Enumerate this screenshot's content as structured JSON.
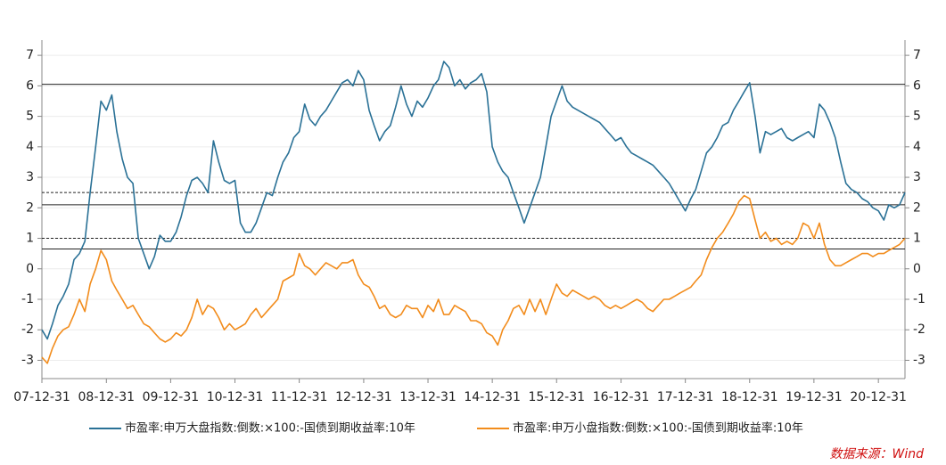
{
  "chart_data": {
    "type": "line",
    "x": [
      "07-12-31",
      "08-01-31",
      "08-02-29",
      "08-03-31",
      "08-04-30",
      "08-05-31",
      "08-06-30",
      "08-07-31",
      "08-08-31",
      "08-09-30",
      "08-10-31",
      "08-11-30",
      "08-12-31",
      "09-01-31",
      "09-02-28",
      "09-03-31",
      "09-04-30",
      "09-05-31",
      "09-06-30",
      "09-07-31",
      "09-08-31",
      "09-09-30",
      "09-10-31",
      "09-11-30",
      "09-12-31",
      "10-01-31",
      "10-02-28",
      "10-03-31",
      "10-04-30",
      "10-05-31",
      "10-06-30",
      "10-07-31",
      "10-08-31",
      "10-09-30",
      "10-10-31",
      "10-11-30",
      "10-12-31",
      "11-01-31",
      "11-02-28",
      "11-03-31",
      "11-04-30",
      "11-05-31",
      "11-06-30",
      "11-07-31",
      "11-08-31",
      "11-09-30",
      "11-10-31",
      "11-11-30",
      "11-12-31",
      "12-01-31",
      "12-02-29",
      "12-03-31",
      "12-04-30",
      "12-05-31",
      "12-06-30",
      "12-07-31",
      "12-08-31",
      "12-09-30",
      "12-10-31",
      "12-11-30",
      "12-12-31",
      "13-01-31",
      "13-02-28",
      "13-03-31",
      "13-04-30",
      "13-05-31",
      "13-06-30",
      "13-07-31",
      "13-08-31",
      "13-09-30",
      "13-10-31",
      "13-11-30",
      "13-12-31",
      "14-01-31",
      "14-02-28",
      "14-03-31",
      "14-04-30",
      "14-05-31",
      "14-06-30",
      "14-07-31",
      "14-08-31",
      "14-09-30",
      "14-10-31",
      "14-11-30",
      "14-12-31",
      "15-01-31",
      "15-02-28",
      "15-03-31",
      "15-04-30",
      "15-05-31",
      "15-06-30",
      "15-07-31",
      "15-08-31",
      "15-09-30",
      "15-10-31",
      "15-11-30",
      "15-12-31",
      "16-01-31",
      "16-02-29",
      "16-03-31",
      "16-04-30",
      "16-05-31",
      "16-06-30",
      "16-07-31",
      "16-08-31",
      "16-09-30",
      "16-10-31",
      "16-11-30",
      "16-12-31",
      "17-01-31",
      "17-02-28",
      "17-03-31",
      "17-04-30",
      "17-05-31",
      "17-06-30",
      "17-07-31",
      "17-08-31",
      "17-09-30",
      "17-10-31",
      "17-11-30",
      "17-12-31",
      "18-01-31",
      "18-02-28",
      "18-03-31",
      "18-04-30",
      "18-05-31",
      "18-06-30",
      "18-07-31",
      "18-08-31",
      "18-09-30",
      "18-10-31",
      "18-11-30",
      "18-12-31",
      "19-01-31",
      "19-02-28",
      "19-03-31",
      "19-04-30",
      "19-05-31",
      "19-06-30",
      "19-07-31",
      "19-08-31",
      "19-09-30",
      "19-10-31",
      "19-11-30",
      "19-12-31",
      "20-01-31",
      "20-02-29",
      "20-03-31",
      "20-04-30",
      "20-05-31",
      "20-06-30",
      "20-07-31",
      "20-08-31",
      "20-09-30",
      "20-10-31",
      "20-11-30",
      "20-12-31",
      "21-01-31",
      "21-02-28",
      "21-03-31",
      "21-04-30",
      "21-05-31"
    ],
    "series": [
      {
        "name": "市盈率:申万大盘指数:倒数:×100:-国债到期收益率:10年",
        "color": "#2a7196",
        "values": [
          -2.0,
          -2.3,
          -1.8,
          -1.2,
          -0.9,
          -0.5,
          0.3,
          0.5,
          0.9,
          2.5,
          4.0,
          5.5,
          5.2,
          5.7,
          4.5,
          3.6,
          3.0,
          2.8,
          1.0,
          0.5,
          0.0,
          0.4,
          1.1,
          0.9,
          0.9,
          1.2,
          1.7,
          2.4,
          2.9,
          3.0,
          2.8,
          2.5,
          4.2,
          3.5,
          2.9,
          2.8,
          2.9,
          1.5,
          1.2,
          1.2,
          1.5,
          2.0,
          2.5,
          2.4,
          3.0,
          3.5,
          3.8,
          4.3,
          4.5,
          5.4,
          4.9,
          4.7,
          5.0,
          5.2,
          5.5,
          5.8,
          6.1,
          6.2,
          6.0,
          6.5,
          6.2,
          5.2,
          4.7,
          4.2,
          4.5,
          4.7,
          5.3,
          6.0,
          5.4,
          5.0,
          5.5,
          5.3,
          5.6,
          6.0,
          6.2,
          6.8,
          6.6,
          6.0,
          6.2,
          5.9,
          6.1,
          6.2,
          6.4,
          5.8,
          4.0,
          3.5,
          3.2,
          3.0,
          2.5,
          2.0,
          1.5,
          2.0,
          2.5,
          3.0,
          4.0,
          5.0,
          5.5,
          6.0,
          5.5,
          5.3,
          5.2,
          5.1,
          5.0,
          4.9,
          4.8,
          4.6,
          4.4,
          4.2,
          4.3,
          4.0,
          3.8,
          3.7,
          3.6,
          3.5,
          3.4,
          3.2,
          3.0,
          2.8,
          2.5,
          2.2,
          1.9,
          2.3,
          2.6,
          3.2,
          3.8,
          4.0,
          4.3,
          4.7,
          4.8,
          5.2,
          5.5,
          5.8,
          6.1,
          5.0,
          3.8,
          4.5,
          4.4,
          4.5,
          4.6,
          4.3,
          4.2,
          4.3,
          4.4,
          4.5,
          4.3,
          5.4,
          5.2,
          4.8,
          4.3,
          3.5,
          2.8,
          2.6,
          2.5,
          2.3,
          2.2,
          2.0,
          1.9,
          1.6,
          2.1,
          2.0,
          2.1,
          2.5
        ]
      },
      {
        "name": "市盈率:申万小盘指数:倒数:×100:-国债到期收益率:10年",
        "color": "#f28c1c",
        "values": [
          -2.9,
          -3.1,
          -2.6,
          -2.2,
          -2.0,
          -1.9,
          -1.5,
          -1.0,
          -1.4,
          -0.5,
          0.0,
          0.6,
          0.3,
          -0.4,
          -0.7,
          -1.0,
          -1.3,
          -1.2,
          -1.5,
          -1.8,
          -1.9,
          -2.1,
          -2.3,
          -2.4,
          -2.3,
          -2.1,
          -2.2,
          -2.0,
          -1.6,
          -1.0,
          -1.5,
          -1.2,
          -1.3,
          -1.6,
          -2.0,
          -1.8,
          -2.0,
          -1.9,
          -1.8,
          -1.5,
          -1.3,
          -1.6,
          -1.4,
          -1.2,
          -1.0,
          -0.4,
          -0.3,
          -0.2,
          0.5,
          0.1,
          0.0,
          -0.2,
          0.0,
          0.2,
          0.1,
          0.0,
          0.2,
          0.2,
          0.3,
          -0.2,
          -0.5,
          -0.6,
          -0.9,
          -1.3,
          -1.2,
          -1.5,
          -1.6,
          -1.5,
          -1.2,
          -1.3,
          -1.3,
          -1.6,
          -1.2,
          -1.4,
          -1.0,
          -1.5,
          -1.5,
          -1.2,
          -1.3,
          -1.4,
          -1.7,
          -1.7,
          -1.8,
          -2.1,
          -2.2,
          -2.5,
          -2.0,
          -1.7,
          -1.3,
          -1.2,
          -1.5,
          -1.0,
          -1.4,
          -1.0,
          -1.5,
          -1.0,
          -0.5,
          -0.8,
          -0.9,
          -0.7,
          -0.8,
          -0.9,
          -1.0,
          -0.9,
          -1.0,
          -1.2,
          -1.3,
          -1.2,
          -1.3,
          -1.2,
          -1.1,
          -1.0,
          -1.1,
          -1.3,
          -1.4,
          -1.2,
          -1.0,
          -1.0,
          -0.9,
          -0.8,
          -0.7,
          -0.6,
          -0.4,
          -0.2,
          0.3,
          0.7,
          1.0,
          1.2,
          1.5,
          1.8,
          2.2,
          2.4,
          2.3,
          1.6,
          1.0,
          1.2,
          0.9,
          1.0,
          0.8,
          0.9,
          0.8,
          1.0,
          1.5,
          1.4,
          1.0,
          1.5,
          0.8,
          0.3,
          0.1,
          0.1,
          0.2,
          0.3,
          0.4,
          0.5,
          0.5,
          0.4,
          0.5,
          0.5,
          0.6,
          0.7,
          0.8,
          1.0
        ]
      }
    ],
    "xlim": [
      "07-12-31",
      "21-05-31"
    ],
    "xticks": [
      "07-12-31",
      "08-12-31",
      "09-12-31",
      "10-12-31",
      "11-12-31",
      "12-12-31",
      "13-12-31",
      "14-12-31",
      "15-12-31",
      "16-12-31",
      "17-12-31",
      "18-12-31",
      "19-12-31",
      "20-12-31"
    ],
    "ylim": [
      -3.6,
      7.5
    ],
    "yticks": [
      -3,
      -2,
      -1,
      0,
      1,
      2,
      3,
      4,
      5,
      6,
      7
    ],
    "grid": true,
    "hlines": [
      {
        "value": 6.05,
        "dashed": false
      },
      {
        "value": 2.5,
        "dashed": true
      },
      {
        "value": 2.1,
        "dashed": false
      },
      {
        "value": 1.0,
        "dashed": true
      },
      {
        "value": 0.65,
        "dashed": false
      }
    ],
    "legend": "bottom",
    "source": "数据来源：Wind"
  }
}
